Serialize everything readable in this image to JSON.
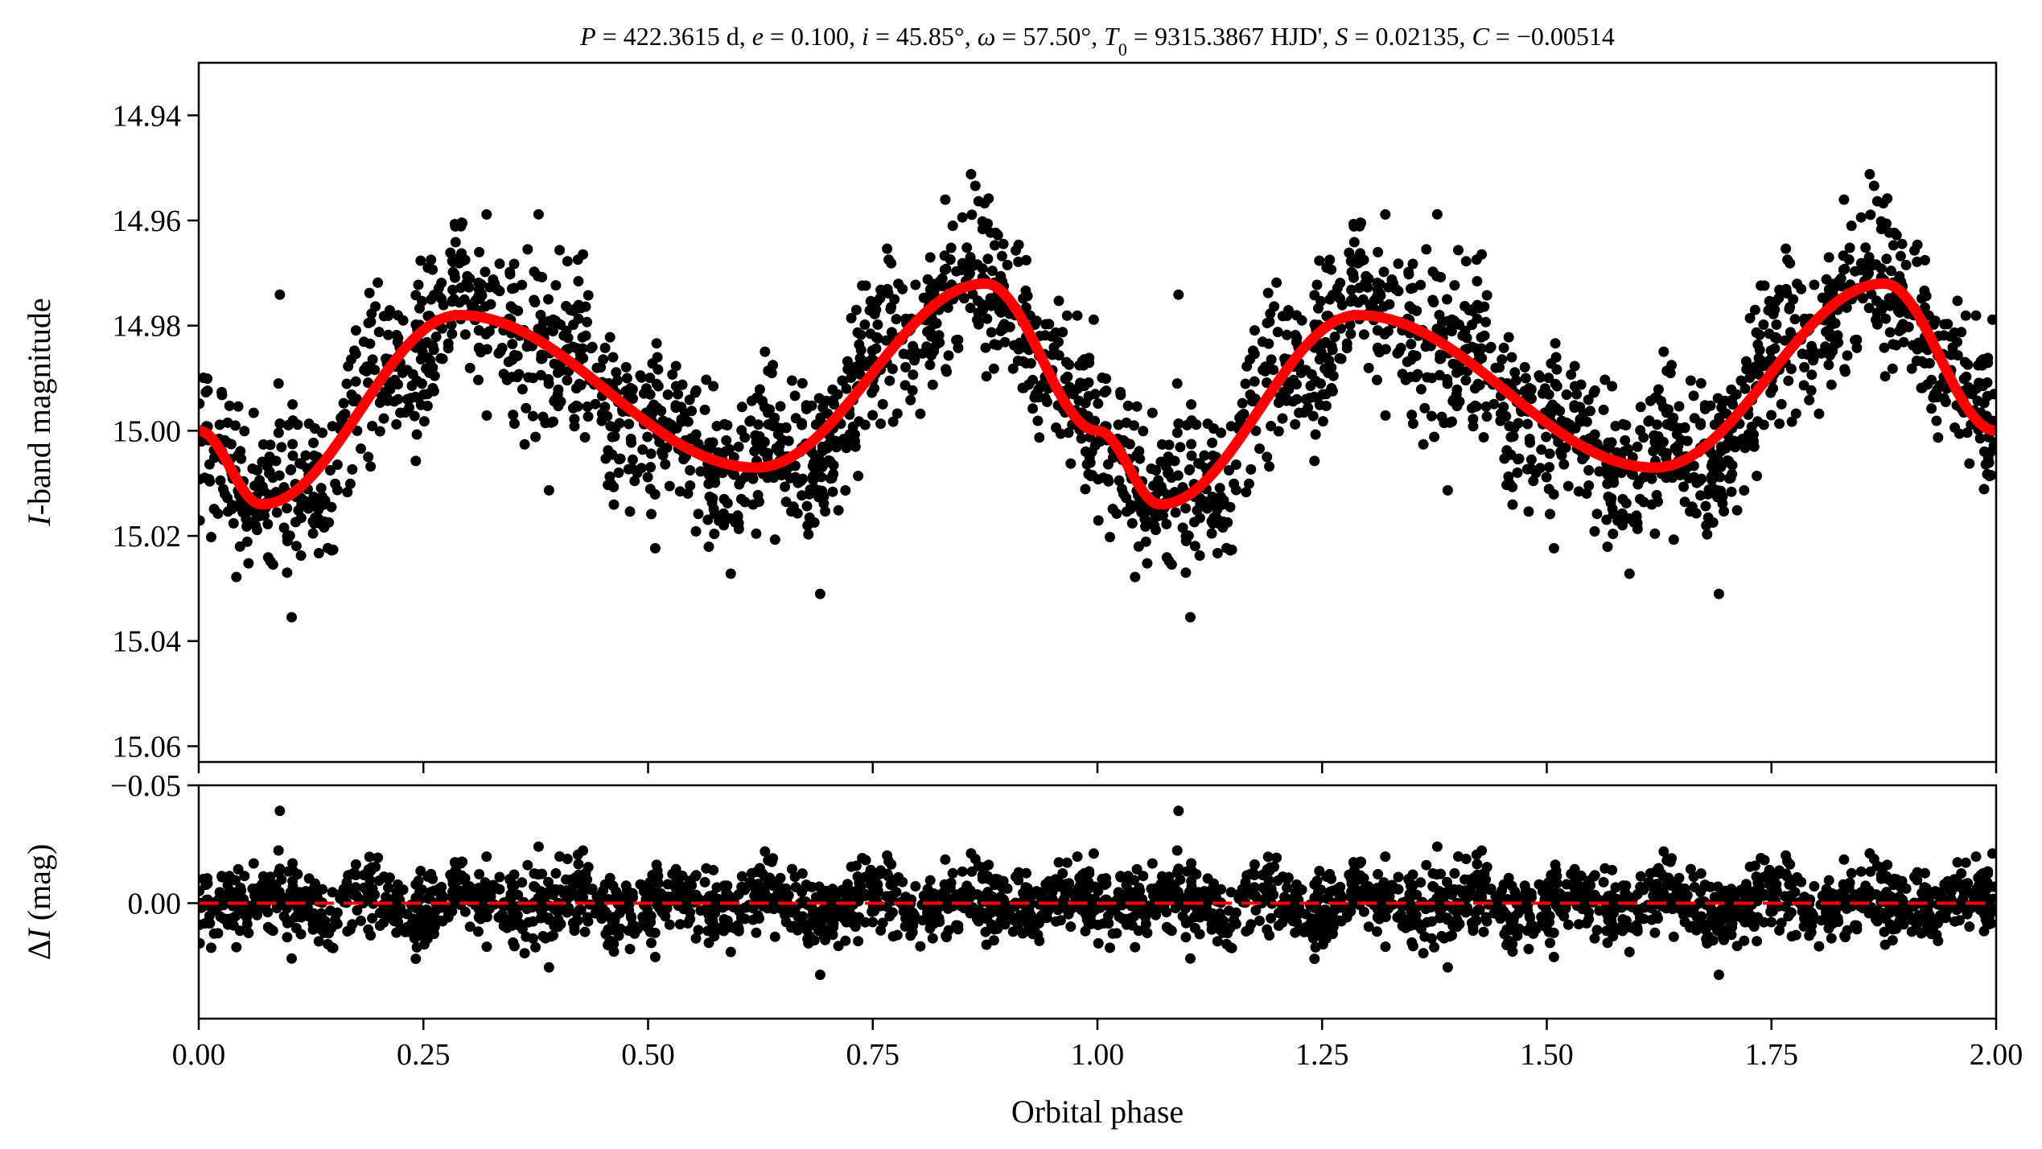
{
  "chart_data": {
    "type": "scatter",
    "title_segments": [
      {
        "t": "P",
        "i": true
      },
      {
        "t": " = 422.3615 d, ",
        "i": false
      },
      {
        "t": "e",
        "i": true
      },
      {
        "t": " = 0.100, ",
        "i": false
      },
      {
        "t": "i",
        "i": true
      },
      {
        "t": " = 45.85°, ",
        "i": false
      },
      {
        "t": "ω",
        "i": true
      },
      {
        "t": " = 57.50°, ",
        "i": false
      },
      {
        "t": "T",
        "i": true
      },
      {
        "t": "0",
        "i": false,
        "sub": true
      },
      {
        "t": " = 9315.3867 HJD', ",
        "i": false
      },
      {
        "t": "S",
        "i": true
      },
      {
        "t": " = 0.02135, ",
        "i": false
      },
      {
        "t": "C",
        "i": true
      },
      {
        "t": " = −0.00514",
        "i": false
      }
    ],
    "xlabel": "Orbital phase",
    "xlim": [
      0,
      2
    ],
    "xticks": [
      "0.00",
      "0.25",
      "0.50",
      "0.75",
      "1.00",
      "1.25",
      "1.50",
      "1.75",
      "2.00"
    ],
    "top_panel": {
      "ylabel_segments": [
        {
          "t": "I",
          "i": true
        },
        {
          "t": "-band magnitude",
          "i": false
        }
      ],
      "ylim": [
        14.93,
        15.063
      ],
      "inverted": true,
      "yticks": [
        "14.94",
        "14.96",
        "14.98",
        "15.00",
        "15.02",
        "15.04",
        "15.06"
      ],
      "model_curve": {
        "color": "#ff0000",
        "phase": [
          0.0,
          0.07,
          0.29,
          0.62,
          0.875,
          1.0
        ],
        "mag": [
          15.0,
          15.014,
          14.978,
          15.007,
          14.972,
          15.0
        ]
      },
      "observations": {
        "color": "#000000",
        "points_per_cycle": 1300,
        "scatter_sigma_mag": 0.0095,
        "seed": 7
      }
    },
    "bottom_panel": {
      "ylabel_segments": [
        {
          "t": "Δ",
          "i": false
        },
        {
          "t": "I",
          "i": true
        },
        {
          "t": " (mag)",
          "i": false
        }
      ],
      "ylim": [
        -0.05,
        0.049
      ],
      "inverted": true,
      "yticks": [
        "−0.05",
        "0.00"
      ],
      "ytick_values": [
        -0.05,
        0.0
      ],
      "zero_line": {
        "value": 0.0,
        "color": "#ff0000",
        "style": "dashed"
      }
    }
  }
}
